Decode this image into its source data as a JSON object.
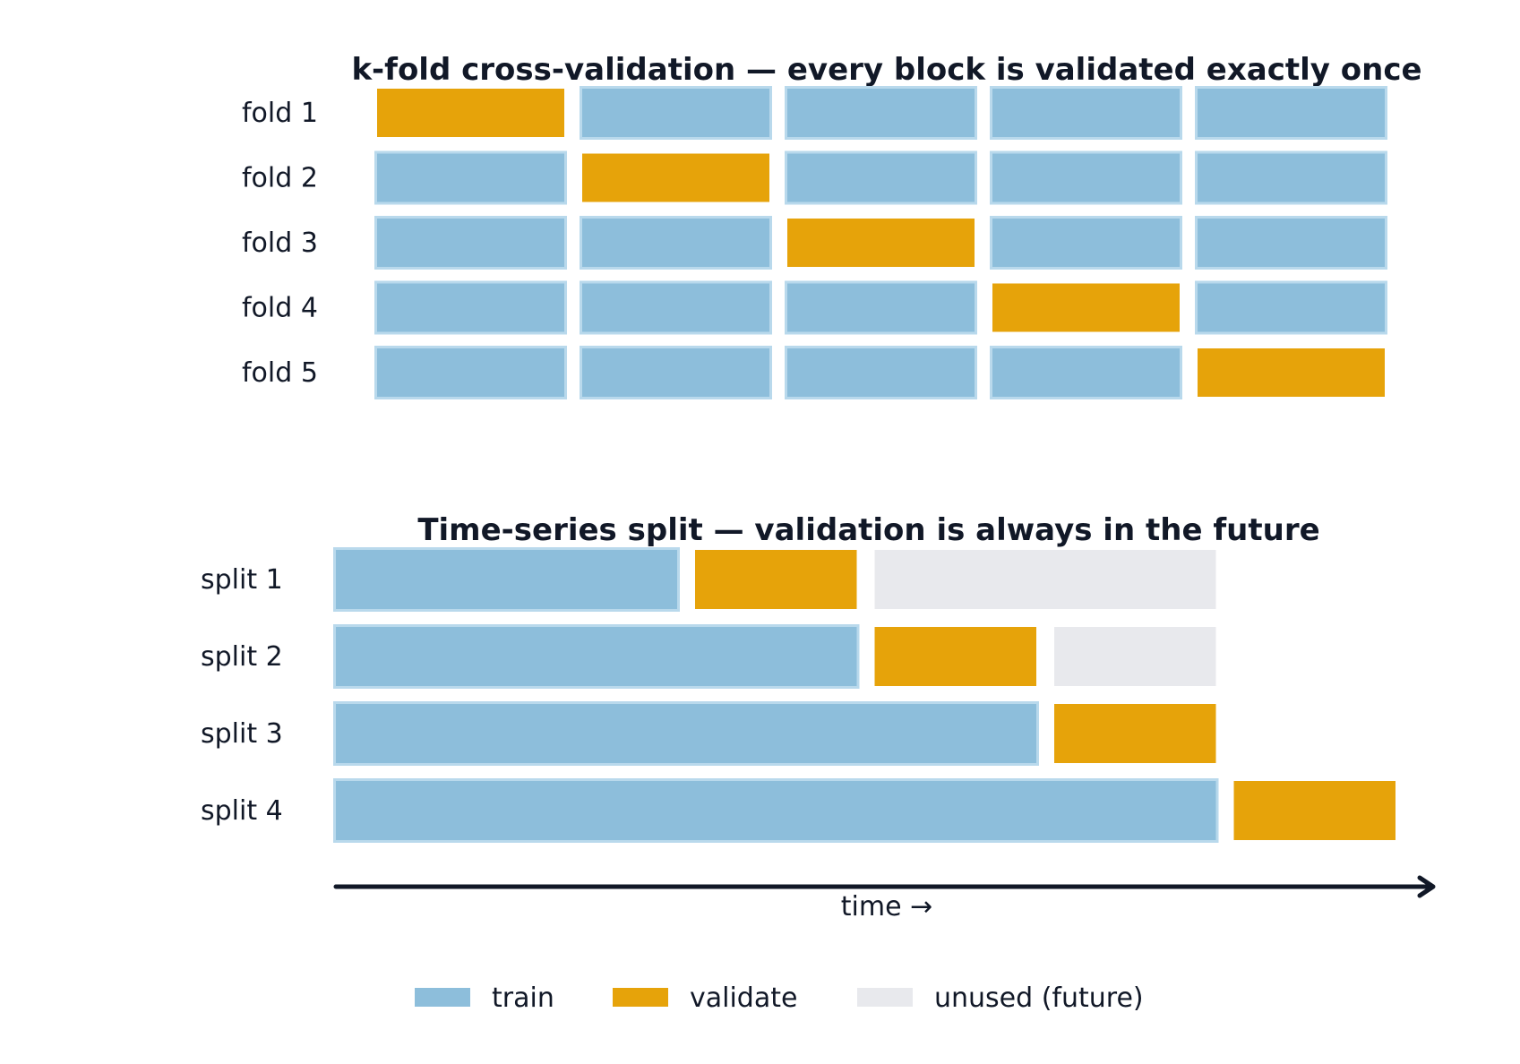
{
  "colors": {
    "train": "#8dbedb",
    "train_stroke": "#b9d9ec",
    "validate": "#e6a30a",
    "unused": "#e8e9ed",
    "text": "#111827"
  },
  "kfold": {
    "title": "k-fold cross-validation — every block is validated exactly once",
    "rows": [
      {
        "label": "fold 1",
        "blocks": [
          "validate",
          "train",
          "train",
          "train",
          "train"
        ]
      },
      {
        "label": "fold 2",
        "blocks": [
          "train",
          "validate",
          "train",
          "train",
          "train"
        ]
      },
      {
        "label": "fold 3",
        "blocks": [
          "train",
          "train",
          "validate",
          "train",
          "train"
        ]
      },
      {
        "label": "fold 4",
        "blocks": [
          "train",
          "train",
          "train",
          "validate",
          "train"
        ]
      },
      {
        "label": "fold 5",
        "blocks": [
          "train",
          "train",
          "train",
          "train",
          "validate"
        ]
      }
    ]
  },
  "timeseries": {
    "title": "Time-series split — validation is always in the future",
    "rows": [
      {
        "label": "split 1",
        "segments": [
          {
            "kind": "train",
            "units": 2
          },
          {
            "kind": "validate",
            "units": 1
          },
          {
            "kind": "unused",
            "units": 2
          }
        ]
      },
      {
        "label": "split 2",
        "segments": [
          {
            "kind": "train",
            "units": 3
          },
          {
            "kind": "validate",
            "units": 1
          },
          {
            "kind": "unused",
            "units": 1
          }
        ]
      },
      {
        "label": "split 3",
        "segments": [
          {
            "kind": "train",
            "units": 4
          },
          {
            "kind": "validate",
            "units": 1
          }
        ]
      },
      {
        "label": "split 4",
        "segments": [
          {
            "kind": "train",
            "units": 5
          },
          {
            "kind": "validate",
            "units": 1
          }
        ]
      }
    ],
    "axis_label": "time →"
  },
  "legend": [
    {
      "kind": "train",
      "label": "train"
    },
    {
      "kind": "validate",
      "label": "validate"
    },
    {
      "kind": "unused",
      "label": "unused (future)"
    }
  ]
}
